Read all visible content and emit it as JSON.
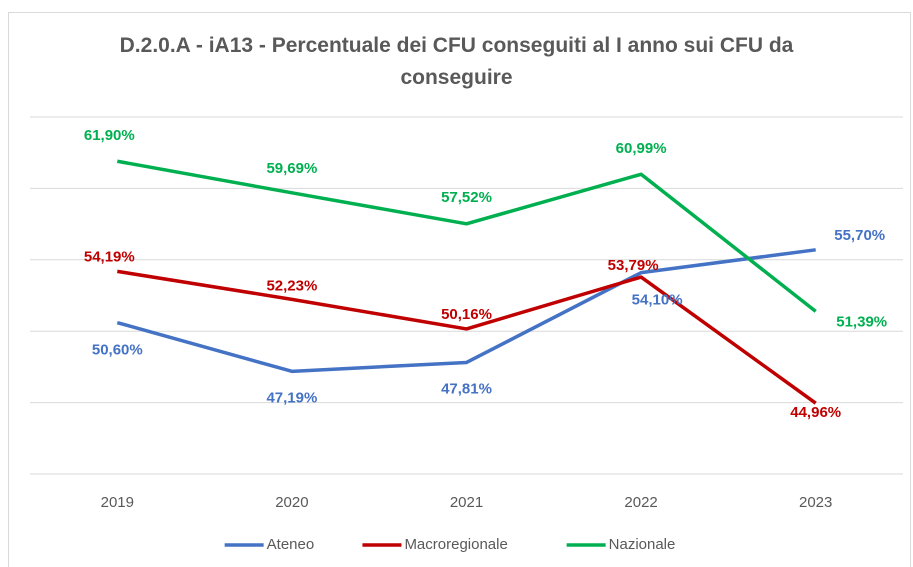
{
  "chart_data": {
    "type": "line",
    "title": "D.2.0.A - iA13 - Percentuale dei CFU conseguiti al I anno sui CFU da conseguire",
    "categories": [
      "2019",
      "2020",
      "2021",
      "2022",
      "2023"
    ],
    "series": [
      {
        "name": "Ateneo",
        "color": "#4472c4",
        "values": [
          50.6,
          47.19,
          47.81,
          54.1,
          55.7
        ],
        "value_labels": [
          "50,60%",
          "47,19%",
          "47,81%",
          "54,10%",
          "55,70%"
        ]
      },
      {
        "name": "Macroregionale",
        "color": "#c00000",
        "values": [
          54.19,
          52.23,
          50.16,
          53.79,
          44.96
        ],
        "value_labels": [
          "54,19%",
          "52,23%",
          "50,16%",
          "53,79%",
          "44,96%"
        ]
      },
      {
        "name": "Nazionale",
        "color": "#00b050",
        "values": [
          61.9,
          59.69,
          57.52,
          60.99,
          51.39
        ],
        "value_labels": [
          "61,90%",
          "59,69%",
          "57,52%",
          "60,99%",
          "51,39%"
        ]
      }
    ],
    "ylim": [
      40,
      65
    ],
    "yticks": [
      40,
      45,
      50,
      55,
      60,
      65
    ],
    "grid": true,
    "legend": "bottom"
  }
}
